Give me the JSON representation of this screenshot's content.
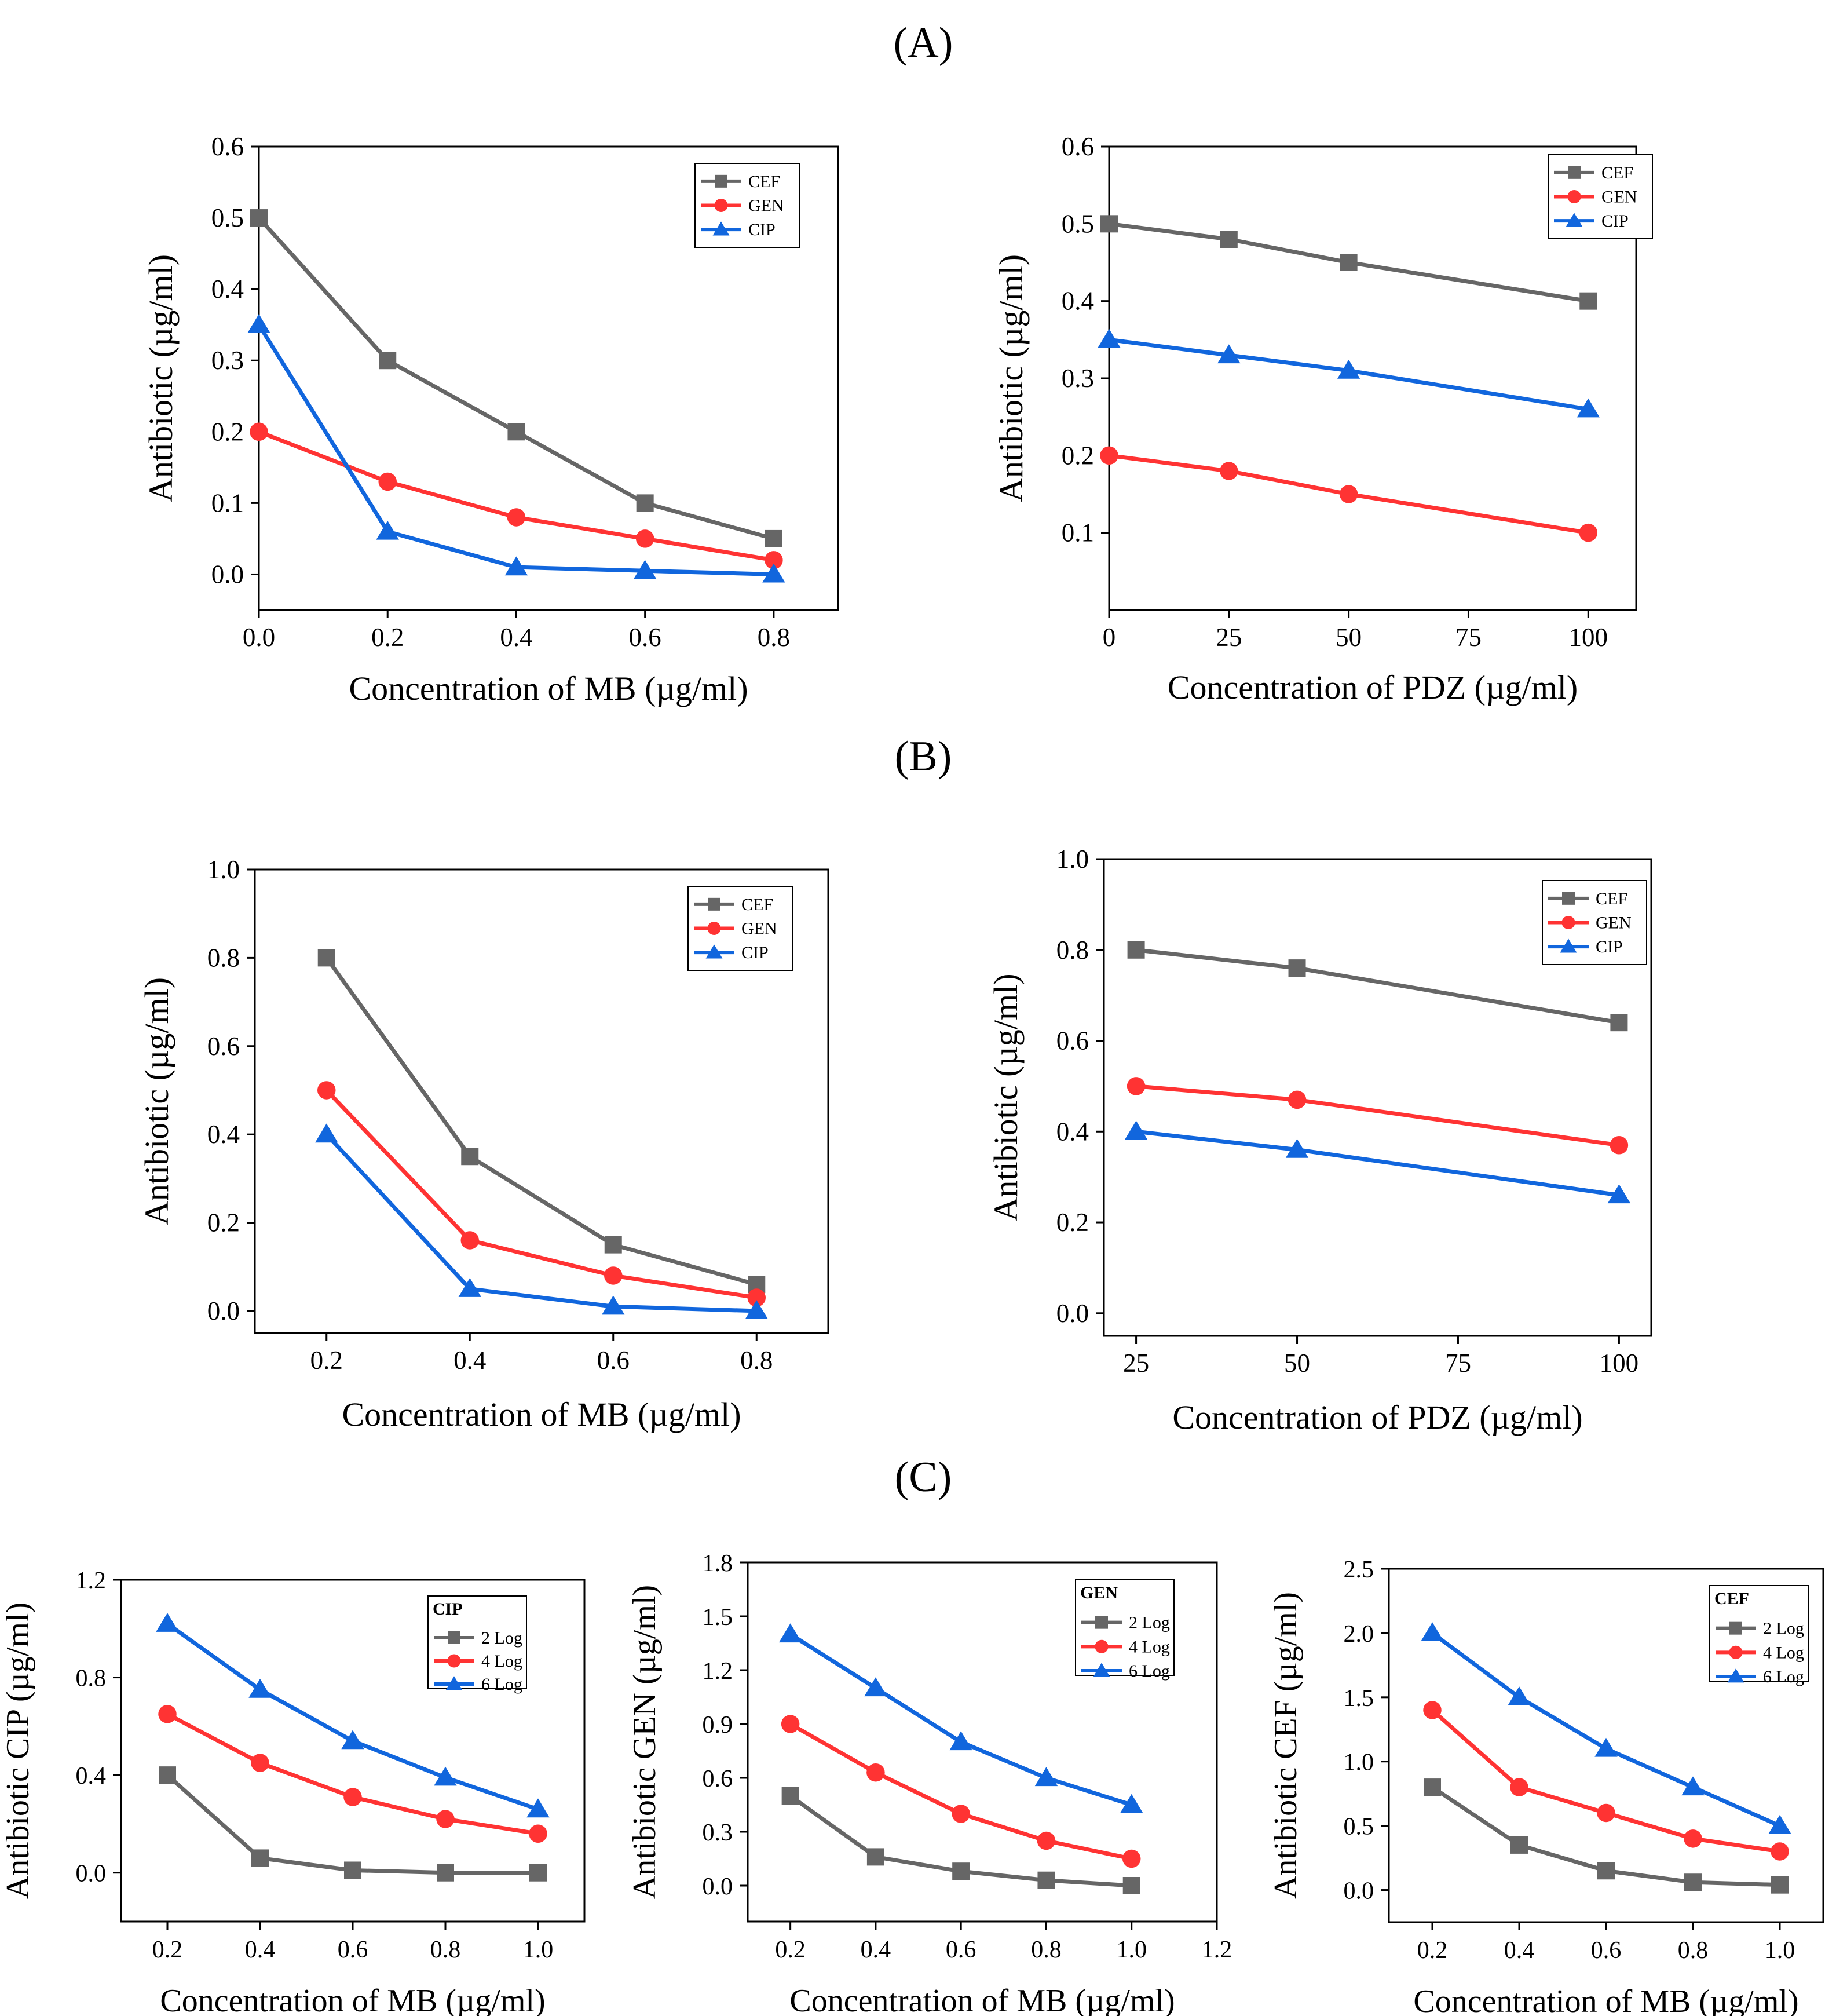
{
  "panel_labels": [
    "(A)",
    "(B)",
    "(C)"
  ],
  "colors": {
    "CEF": "#666666",
    "GEN": "#ff3333",
    "CIP": "#1166dd",
    "2 Log": "#666666",
    "4 Log": "#ff3333",
    "6 Log": "#1166dd"
  },
  "chart_data": [
    {
      "id": "A-left",
      "type": "line",
      "panel": "(A)",
      "xlabel": "Concentration of MB (µg/ml)",
      "ylabel": "Antibiotic (µg/ml)",
      "xlim": [
        0,
        0.9
      ],
      "ylim": [
        -0.05,
        0.6
      ],
      "xticks": [
        0,
        0.2,
        0.4,
        0.6,
        0.8
      ],
      "xtick_labels": [
        "0.0",
        "0.2",
        "0.4",
        "0.6",
        "0.8"
      ],
      "yticks": [
        0,
        0.1,
        0.2,
        0.3,
        0.4,
        0.5,
        0.6
      ],
      "ytick_labels": [
        "0.0",
        "0.1",
        "0.2",
        "0.3",
        "0.4",
        "0.5",
        "0.6"
      ],
      "legend_title": "",
      "series": [
        {
          "name": "CEF",
          "marker": "square",
          "x": [
            0,
            0.2,
            0.4,
            0.6,
            0.8
          ],
          "y": [
            0.5,
            0.3,
            0.2,
            0.1,
            0.05
          ]
        },
        {
          "name": "GEN",
          "marker": "circle",
          "x": [
            0,
            0.2,
            0.4,
            0.6,
            0.8
          ],
          "y": [
            0.2,
            0.13,
            0.08,
            0.05,
            0.02
          ]
        },
        {
          "name": "CIP",
          "marker": "triangle",
          "x": [
            0,
            0.2,
            0.4,
            0.6,
            0.8
          ],
          "y": [
            0.35,
            0.06,
            0.01,
            0.005,
            0.0
          ]
        }
      ]
    },
    {
      "id": "A-right",
      "type": "line",
      "panel": "(A)",
      "xlabel": "Concentration of PDZ (µg/ml)",
      "ylabel": "Antibiotic (µg/ml)",
      "xlim": [
        0,
        110
      ],
      "ylim": [
        0,
        0.6
      ],
      "xticks": [
        0,
        25,
        50,
        75,
        100
      ],
      "xtick_labels": [
        "0",
        "25",
        "50",
        "75",
        "100"
      ],
      "yticks": [
        0.1,
        0.2,
        0.3,
        0.4,
        0.5,
        0.6
      ],
      "ytick_labels": [
        "0.1",
        "0.2",
        "0.3",
        "0.4",
        "0.5",
        "0.6"
      ],
      "legend_title": "",
      "series": [
        {
          "name": "CEF",
          "marker": "square",
          "x": [
            0,
            25,
            50,
            100
          ],
          "y": [
            0.5,
            0.48,
            0.45,
            0.4
          ]
        },
        {
          "name": "GEN",
          "marker": "circle",
          "x": [
            0,
            25,
            50,
            100
          ],
          "y": [
            0.2,
            0.18,
            0.15,
            0.1
          ]
        },
        {
          "name": "CIP",
          "marker": "triangle",
          "x": [
            0,
            25,
            50,
            100
          ],
          "y": [
            0.35,
            0.33,
            0.31,
            0.26
          ]
        }
      ]
    },
    {
      "id": "B-left",
      "type": "line",
      "panel": "(B)",
      "xlabel": "Concentration of MB (µg/ml)",
      "ylabel": "Antibiotic (µg/ml)",
      "xlim": [
        0.1,
        0.9
      ],
      "ylim": [
        -0.05,
        1.0
      ],
      "xticks": [
        0.2,
        0.4,
        0.6,
        0.8
      ],
      "xtick_labels": [
        "0.2",
        "0.4",
        "0.6",
        "0.8"
      ],
      "yticks": [
        0,
        0.2,
        0.4,
        0.6,
        0.8,
        1.0
      ],
      "ytick_labels": [
        "0.0",
        "0.2",
        "0.4",
        "0.6",
        "0.8",
        "1.0"
      ],
      "legend_title": "",
      "series": [
        {
          "name": "CEF",
          "marker": "square",
          "x": [
            0.2,
            0.4,
            0.6,
            0.8
          ],
          "y": [
            0.8,
            0.35,
            0.15,
            0.06
          ]
        },
        {
          "name": "GEN",
          "marker": "circle",
          "x": [
            0.2,
            0.4,
            0.6,
            0.8
          ],
          "y": [
            0.5,
            0.16,
            0.08,
            0.03
          ]
        },
        {
          "name": "CIP",
          "marker": "triangle",
          "x": [
            0.2,
            0.4,
            0.6,
            0.8
          ],
          "y": [
            0.4,
            0.05,
            0.01,
            0.0
          ]
        }
      ]
    },
    {
      "id": "B-right",
      "type": "line",
      "panel": "(B)",
      "xlabel": "Concentration of PDZ (µg/ml)",
      "ylabel": "Antibiotic (µg/ml)",
      "xlim": [
        20,
        105
      ],
      "ylim": [
        -0.05,
        1.0
      ],
      "xticks": [
        25,
        50,
        75,
        100
      ],
      "xtick_labels": [
        "25",
        "50",
        "75",
        "100"
      ],
      "yticks": [
        0,
        0.2,
        0.4,
        0.6,
        0.8,
        1.0
      ],
      "ytick_labels": [
        "0.0",
        "0.2",
        "0.4",
        "0.6",
        "0.8",
        "1.0"
      ],
      "legend_title": "",
      "series": [
        {
          "name": "CEF",
          "marker": "square",
          "x": [
            25,
            50,
            100
          ],
          "y": [
            0.8,
            0.76,
            0.64
          ]
        },
        {
          "name": "GEN",
          "marker": "circle",
          "x": [
            25,
            50,
            100
          ],
          "y": [
            0.5,
            0.47,
            0.37
          ]
        },
        {
          "name": "CIP",
          "marker": "triangle",
          "x": [
            25,
            50,
            100
          ],
          "y": [
            0.4,
            0.36,
            0.26
          ]
        }
      ]
    },
    {
      "id": "C-left",
      "type": "line",
      "panel": "(C)",
      "xlabel": "Concentration of MB (µg/ml)",
      "ylabel": "Antibiotic CIP (µg/ml)",
      "xlim": [
        0.1,
        1.1
      ],
      "ylim": [
        -0.2,
        1.2
      ],
      "xticks": [
        0.2,
        0.4,
        0.6,
        0.8,
        1.0
      ],
      "xtick_labels": [
        "0.2",
        "0.4",
        "0.6",
        "0.8",
        "1.0"
      ],
      "yticks": [
        0,
        0.4,
        0.8,
        1.2
      ],
      "ytick_labels": [
        "0.0",
        "0.4",
        "0.8",
        "1.2"
      ],
      "legend_title": "CIP",
      "series": [
        {
          "name": "2 Log",
          "marker": "square",
          "x": [
            0.2,
            0.4,
            0.6,
            0.8,
            1.0
          ],
          "y": [
            0.4,
            0.06,
            0.01,
            0.0,
            0.0
          ]
        },
        {
          "name": "4 Log",
          "marker": "circle",
          "x": [
            0.2,
            0.4,
            0.6,
            0.8,
            1.0
          ],
          "y": [
            0.65,
            0.45,
            0.31,
            0.22,
            0.16
          ]
        },
        {
          "name": "6 Log",
          "marker": "triangle",
          "x": [
            0.2,
            0.4,
            0.6,
            0.8,
            1.0
          ],
          "y": [
            1.02,
            0.75,
            0.54,
            0.39,
            0.26
          ]
        }
      ]
    },
    {
      "id": "C-middle",
      "type": "line",
      "panel": "(C)",
      "xlabel": "Concentration of MB (µg/ml)",
      "ylabel": "Antibiotic GEN (µg/ml)",
      "xlim": [
        0.1,
        1.2
      ],
      "ylim": [
        -0.2,
        1.8
      ],
      "xticks": [
        0.2,
        0.4,
        0.6,
        0.8,
        1.0,
        1.2
      ],
      "xtick_labels": [
        "0.2",
        "0.4",
        "0.6",
        "0.8",
        "1.0",
        "1.2"
      ],
      "yticks": [
        0,
        0.3,
        0.6,
        0.9,
        1.2,
        1.5,
        1.8
      ],
      "ytick_labels": [
        "0.0",
        "0.3",
        "0.6",
        "0.9",
        "1.2",
        "1.5",
        "1.8"
      ],
      "legend_title": "GEN",
      "series": [
        {
          "name": "2 Log",
          "marker": "square",
          "x": [
            0.2,
            0.4,
            0.6,
            0.8,
            1.0
          ],
          "y": [
            0.5,
            0.16,
            0.08,
            0.03,
            0.0
          ]
        },
        {
          "name": "4 Log",
          "marker": "circle",
          "x": [
            0.2,
            0.4,
            0.6,
            0.8,
            1.0
          ],
          "y": [
            0.9,
            0.63,
            0.4,
            0.25,
            0.15
          ]
        },
        {
          "name": "6 Log",
          "marker": "triangle",
          "x": [
            0.2,
            0.4,
            0.6,
            0.8,
            1.0
          ],
          "y": [
            1.4,
            1.1,
            0.8,
            0.6,
            0.45
          ]
        }
      ]
    },
    {
      "id": "C-right",
      "type": "line",
      "panel": "(C)",
      "xlabel": "Concentration of MB (µg/ml)",
      "ylabel": "Antibiotic CEF (µg/ml)",
      "xlim": [
        0.1,
        1.1
      ],
      "ylim": [
        -0.25,
        2.5
      ],
      "xticks": [
        0.2,
        0.4,
        0.6,
        0.8,
        1.0
      ],
      "xtick_labels": [
        "0.2",
        "0.4",
        "0.6",
        "0.8",
        "1.0"
      ],
      "yticks": [
        0,
        0.5,
        1.0,
        1.5,
        2.0,
        2.5
      ],
      "ytick_labels": [
        "0.0",
        "0.5",
        "1.0",
        "1.5",
        "2.0",
        "2.5"
      ],
      "legend_title": "CEF",
      "series": [
        {
          "name": "2 Log",
          "marker": "square",
          "x": [
            0.2,
            0.4,
            0.6,
            0.8,
            1.0
          ],
          "y": [
            0.8,
            0.35,
            0.15,
            0.06,
            0.04
          ]
        },
        {
          "name": "4 Log",
          "marker": "circle",
          "x": [
            0.2,
            0.4,
            0.6,
            0.8,
            1.0
          ],
          "y": [
            1.4,
            0.8,
            0.6,
            0.4,
            0.3
          ]
        },
        {
          "name": "6 Log",
          "marker": "triangle",
          "x": [
            0.2,
            0.4,
            0.6,
            0.8,
            1.0
          ],
          "y": [
            2.0,
            1.5,
            1.1,
            0.8,
            0.5
          ]
        }
      ]
    }
  ]
}
